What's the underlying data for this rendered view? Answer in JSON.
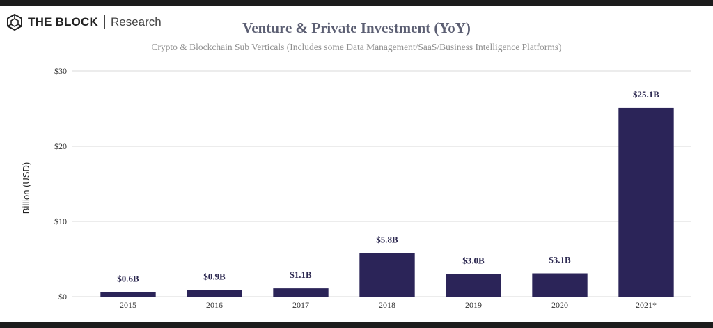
{
  "brand": {
    "name": "THE BLOCK",
    "section": "Research",
    "icon": "cube-hexagon-icon"
  },
  "colors": {
    "bar": "#2b2458",
    "grid": "#d9d9d9",
    "title": "#5c5f73",
    "subtitle": "#8f8f8f"
  },
  "chart_data": {
    "type": "bar",
    "title": "Venture & Private Investment (YoY)",
    "subtitle": "Crypto & Blockchain Sub Verticals (Includes some Data Management/SaaS/Business Intelligence Platforms)",
    "xlabel": "",
    "ylabel": "Billion (USD)",
    "ylim": [
      0,
      30
    ],
    "yticks": [
      0,
      10,
      20,
      30
    ],
    "ytick_labels": [
      "$0",
      "$10",
      "$20",
      "$30"
    ],
    "grid": true,
    "categories": [
      "2015",
      "2016",
      "2017",
      "2018",
      "2019",
      "2020",
      "2021*"
    ],
    "values": [
      0.6,
      0.9,
      1.1,
      5.8,
      3.0,
      3.1,
      25.1
    ],
    "value_labels": [
      "$0.6B",
      "$0.9B",
      "$1.1B",
      "$5.8B",
      "$3.0B",
      "$3.1B",
      "$25.1B"
    ]
  }
}
